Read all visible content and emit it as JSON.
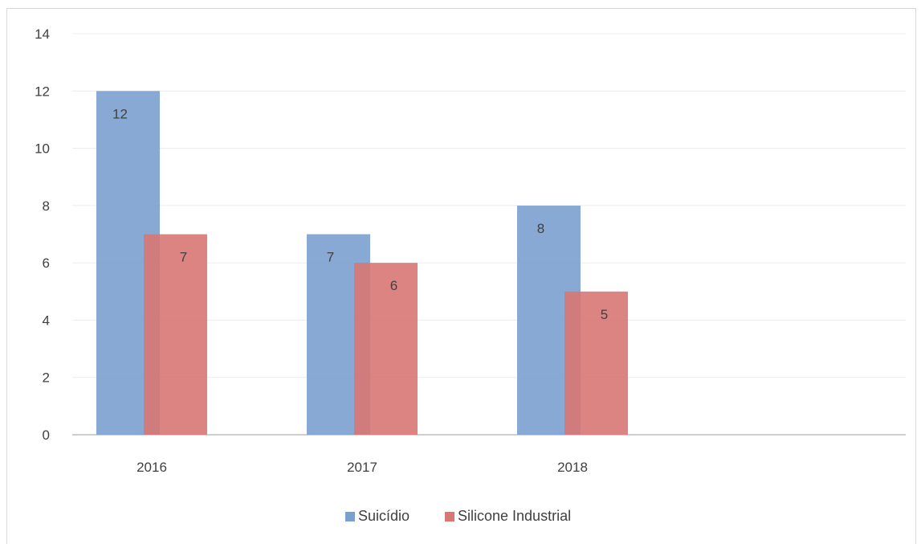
{
  "chart_data": {
    "type": "bar",
    "categories": [
      "2016",
      "2017",
      "2018"
    ],
    "series": [
      {
        "name": "Suicídio",
        "values": [
          12,
          7,
          8
        ],
        "color": "#7aa0cf"
      },
      {
        "name": "Silicone Industrial",
        "values": [
          7,
          6,
          5
        ],
        "color": "#d87773"
      }
    ],
    "ylim": [
      0,
      14
    ],
    "yticks": [
      0,
      2,
      4,
      6,
      8,
      10,
      12,
      14
    ],
    "grid": true,
    "legend_position": "bottom",
    "bar_layout": "overlapping"
  }
}
